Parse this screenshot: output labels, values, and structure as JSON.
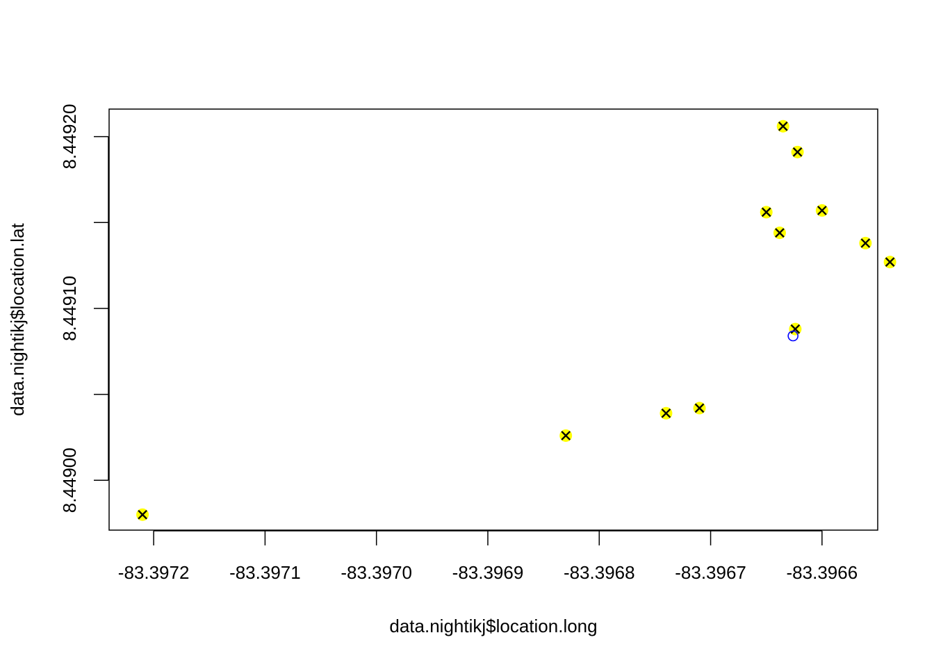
{
  "chart_data": {
    "type": "scatter",
    "title": "",
    "xlabel": "data.nightikj$location.long",
    "ylabel": "data.nightikj$location.lat",
    "xlim": [
      -83.39724,
      -83.39655
    ],
    "ylim": [
      8.448971,
      8.449216
    ],
    "x_ticks": [
      -83.3972,
      -83.3971,
      -83.397,
      -83.3969,
      -83.3968,
      -83.3967,
      -83.3966
    ],
    "x_tick_labels": [
      "-83.3972",
      "-83.3971",
      "-83.3970",
      "-83.3969",
      "-83.3968",
      "-83.3967",
      "-83.3966"
    ],
    "y_ticks": [
      8.449,
      8.44905,
      8.4491,
      8.44915,
      8.4492
    ],
    "y_tick_labels": [
      "8.44900",
      "",
      "8.44910",
      "",
      "8.44920"
    ],
    "grid": false,
    "series": [
      {
        "marker": "yellow-circle-with-x",
        "fill_color": "#ffff00",
        "x_mark_color": "#000000",
        "points": [
          {
            "x": -83.39721,
            "y": 8.44898
          },
          {
            "x": -83.39683,
            "y": 8.449026
          },
          {
            "x": -83.39674,
            "y": 8.449039
          },
          {
            "x": -83.39671,
            "y": 8.449042
          },
          {
            "x": -83.396624,
            "y": 8.449088
          },
          {
            "x": -83.396635,
            "y": 8.449206
          },
          {
            "x": -83.396622,
            "y": 8.449191
          },
          {
            "x": -83.39665,
            "y": 8.449156
          },
          {
            "x": -83.3966,
            "y": 8.449157
          },
          {
            "x": -83.396638,
            "y": 8.449144
          },
          {
            "x": -83.396561,
            "y": 8.449138
          },
          {
            "x": -83.396539,
            "y": 8.449127
          }
        ]
      },
      {
        "marker": "open-circle",
        "stroke_color": "#0000ff",
        "points": [
          {
            "x": -83.396626,
            "y": 8.449084
          }
        ]
      }
    ]
  }
}
